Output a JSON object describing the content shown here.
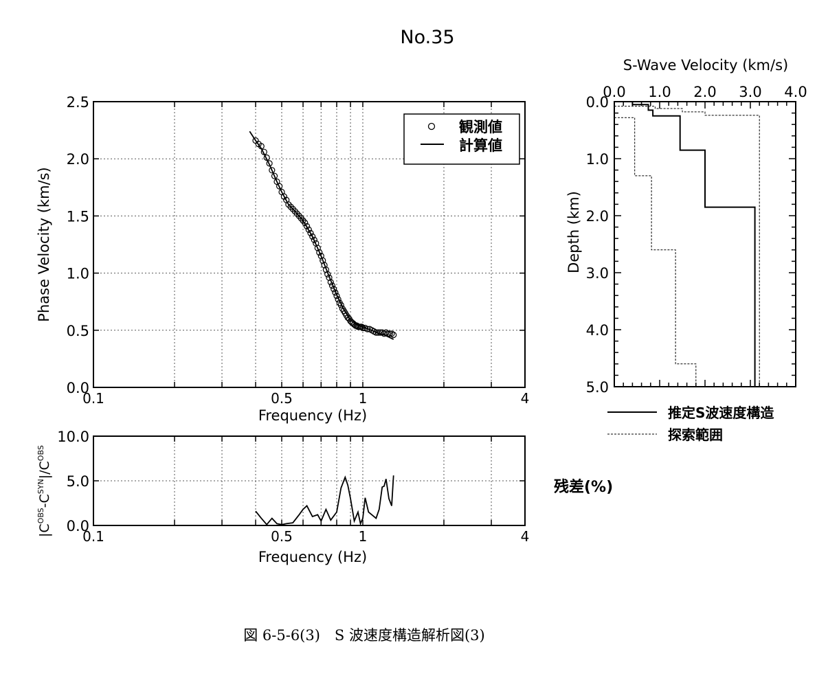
{
  "figure_title": "No.35",
  "caption": "図 6-5-6(3)　S 波速度構造解析図(3)",
  "chart_data": [
    {
      "id": "dispersion",
      "type": "scatter",
      "xlabel": "Frequency (Hz)",
      "ylabel": "Phase Velocity (km/s)",
      "x_scale": "log",
      "xlim": [
        0.1,
        4
      ],
      "ylim": [
        0,
        2.5
      ],
      "x_ticks": [
        {
          "v": 0.1,
          "label": "0.1"
        },
        {
          "v": 0.5,
          "label": "0.5"
        },
        {
          "v": 1,
          "label": "1"
        },
        {
          "v": 4,
          "label": "4"
        }
      ],
      "y_ticks": [
        {
          "v": 0,
          "label": "0.0"
        },
        {
          "v": 0.5,
          "label": "0.5"
        },
        {
          "v": 1.0,
          "label": "1.0"
        },
        {
          "v": 1.5,
          "label": "1.5"
        },
        {
          "v": 2.0,
          "label": "2.0"
        },
        {
          "v": 2.5,
          "label": "2.5"
        }
      ],
      "grid": true,
      "legend_position": "top-right",
      "series": [
        {
          "name": "観測値",
          "style": "circle-markers",
          "x": [
            0.4,
            0.41,
            0.42,
            0.43,
            0.44,
            0.45,
            0.46,
            0.47,
            0.48,
            0.49,
            0.5,
            0.51,
            0.52,
            0.53,
            0.54,
            0.55,
            0.56,
            0.57,
            0.58,
            0.59,
            0.6,
            0.61,
            0.62,
            0.63,
            0.64,
            0.65,
            0.66,
            0.67,
            0.68,
            0.69,
            0.7,
            0.71,
            0.72,
            0.73,
            0.74,
            0.75,
            0.76,
            0.77,
            0.78,
            0.79,
            0.8,
            0.81,
            0.82,
            0.83,
            0.84,
            0.85,
            0.86,
            0.87,
            0.88,
            0.89,
            0.9,
            0.91,
            0.92,
            0.93,
            0.94,
            0.95,
            0.96,
            0.97,
            0.98,
            0.99,
            1.0,
            1.02,
            1.04,
            1.06,
            1.08,
            1.1,
            1.12,
            1.14,
            1.16,
            1.18,
            1.2,
            1.22,
            1.24,
            1.26,
            1.28,
            1.3
          ],
          "y": [
            2.16,
            2.13,
            2.11,
            2.06,
            2.01,
            1.96,
            1.9,
            1.85,
            1.8,
            1.76,
            1.71,
            1.67,
            1.64,
            1.6,
            1.58,
            1.56,
            1.54,
            1.52,
            1.5,
            1.48,
            1.46,
            1.44,
            1.41,
            1.38,
            1.35,
            1.32,
            1.29,
            1.26,
            1.22,
            1.18,
            1.15,
            1.11,
            1.07,
            1.03,
            0.99,
            0.96,
            0.92,
            0.89,
            0.86,
            0.83,
            0.8,
            0.77,
            0.74,
            0.72,
            0.69,
            0.67,
            0.65,
            0.63,
            0.61,
            0.6,
            0.58,
            0.57,
            0.56,
            0.55,
            0.54,
            0.54,
            0.53,
            0.53,
            0.53,
            0.53,
            0.52,
            0.52,
            0.51,
            0.51,
            0.5,
            0.49,
            0.48,
            0.48,
            0.48,
            0.48,
            0.47,
            0.48,
            0.47,
            0.47,
            0.47,
            0.46
          ]
        },
        {
          "name": "計算値",
          "style": "solid-line",
          "x": [
            0.38,
            0.4,
            0.42,
            0.45,
            0.48,
            0.5,
            0.53,
            0.56,
            0.6,
            0.65,
            0.7,
            0.75,
            0.8,
            0.85,
            0.9,
            0.95,
            1.0,
            1.05,
            1.1,
            1.15,
            1.2,
            1.25,
            1.3
          ],
          "y": [
            2.24,
            2.16,
            2.09,
            1.95,
            1.8,
            1.71,
            1.6,
            1.54,
            1.46,
            1.32,
            1.15,
            0.97,
            0.81,
            0.68,
            0.59,
            0.55,
            0.53,
            0.51,
            0.49,
            0.47,
            0.46,
            0.44,
            0.42
          ]
        }
      ]
    },
    {
      "id": "residual",
      "type": "line",
      "xlabel": "Frequency (Hz)",
      "ylabel": "|C^OBS-C^SYN|/C^OBS",
      "x_scale": "log",
      "xlim": [
        0.1,
        4
      ],
      "ylim": [
        0,
        10
      ],
      "x_ticks": [
        {
          "v": 0.1,
          "label": "0.1"
        },
        {
          "v": 0.5,
          "label": "0.5"
        },
        {
          "v": 1,
          "label": "1"
        },
        {
          "v": 4,
          "label": "4"
        }
      ],
      "y_ticks": [
        {
          "v": 0,
          "label": "0.0"
        },
        {
          "v": 5,
          "label": "5.0"
        },
        {
          "v": 10,
          "label": "10.0"
        }
      ],
      "grid": true,
      "annotation": "残差(%)",
      "series": [
        {
          "x": [
            0.4,
            0.42,
            0.44,
            0.46,
            0.48,
            0.5,
            0.52,
            0.55,
            0.58,
            0.6,
            0.62,
            0.65,
            0.68,
            0.7,
            0.73,
            0.76,
            0.8,
            0.83,
            0.86,
            0.88,
            0.9,
            0.93,
            0.96,
            0.98,
            1.0,
            1.02,
            1.05,
            1.08,
            1.12,
            1.15,
            1.18,
            1.2,
            1.22,
            1.25,
            1.28,
            1.3
          ],
          "y": [
            1.6,
            0.8,
            0.1,
            0.8,
            0.2,
            0.1,
            0.2,
            0.3,
            1.2,
            1.8,
            2.2,
            1.0,
            1.2,
            0.5,
            1.8,
            0.6,
            1.5,
            4.2,
            5.4,
            4.5,
            3.0,
            0.5,
            1.5,
            0.2,
            0.8,
            3.1,
            1.5,
            1.2,
            0.8,
            1.8,
            4.3,
            4.4,
            5.2,
            3.0,
            2.2,
            5.6
          ]
        }
      ]
    },
    {
      "id": "vs-profile",
      "type": "line",
      "title": "S-Wave Velocity (km/s)",
      "ylabel": "Depth (km)",
      "xlim": [
        0,
        4
      ],
      "ylim": [
        5,
        0
      ],
      "x_axis_position": "top",
      "x_ticks": [
        {
          "v": 0,
          "label": "0.0"
        },
        {
          "v": 1,
          "label": "1.0"
        },
        {
          "v": 2,
          "label": "2.0"
        },
        {
          "v": 3,
          "label": "3.0"
        },
        {
          "v": 4,
          "label": "4.0"
        }
      ],
      "y_ticks": [
        {
          "v": 0,
          "label": "0.0"
        },
        {
          "v": 1,
          "label": "1.0"
        },
        {
          "v": 2,
          "label": "2.0"
        },
        {
          "v": 3,
          "label": "3.0"
        },
        {
          "v": 4,
          "label": "4.0"
        },
        {
          "v": 5,
          "label": "5.0"
        }
      ],
      "legend_position": "below",
      "series": [
        {
          "name": "推定S波速度構造",
          "style": "solid",
          "points": [
            [
              0.0,
              0.0
            ],
            [
              0.4,
              0.0
            ],
            [
              0.4,
              0.05
            ],
            [
              0.75,
              0.05
            ],
            [
              0.75,
              0.15
            ],
            [
              0.85,
              0.15
            ],
            [
              0.85,
              0.25
            ],
            [
              1.45,
              0.25
            ],
            [
              1.45,
              0.85
            ],
            [
              2.0,
              0.85
            ],
            [
              2.0,
              1.85
            ],
            [
              3.1,
              1.85
            ],
            [
              3.1,
              5.0
            ]
          ]
        },
        {
          "name": "探索範囲",
          "style": "dashed",
          "subpaths": [
            [
              [
                0.0,
                0.28
              ],
              [
                0.45,
                0.28
              ],
              [
                0.45,
                1.3
              ],
              [
                0.82,
                1.3
              ],
              [
                0.82,
                2.6
              ],
              [
                1.35,
                2.6
              ],
              [
                1.35,
                4.6
              ],
              [
                1.8,
                4.6
              ],
              [
                1.8,
                5.0
              ]
            ],
            [
              [
                0.0,
                0.08
              ],
              [
                0.9,
                0.08
              ],
              [
                0.9,
                0.12
              ],
              [
                1.5,
                0.12
              ],
              [
                1.5,
                0.18
              ],
              [
                2.0,
                0.18
              ],
              [
                2.0,
                0.24
              ],
              [
                3.2,
                0.24
              ],
              [
                3.2,
                5.0
              ]
            ]
          ]
        }
      ]
    }
  ]
}
